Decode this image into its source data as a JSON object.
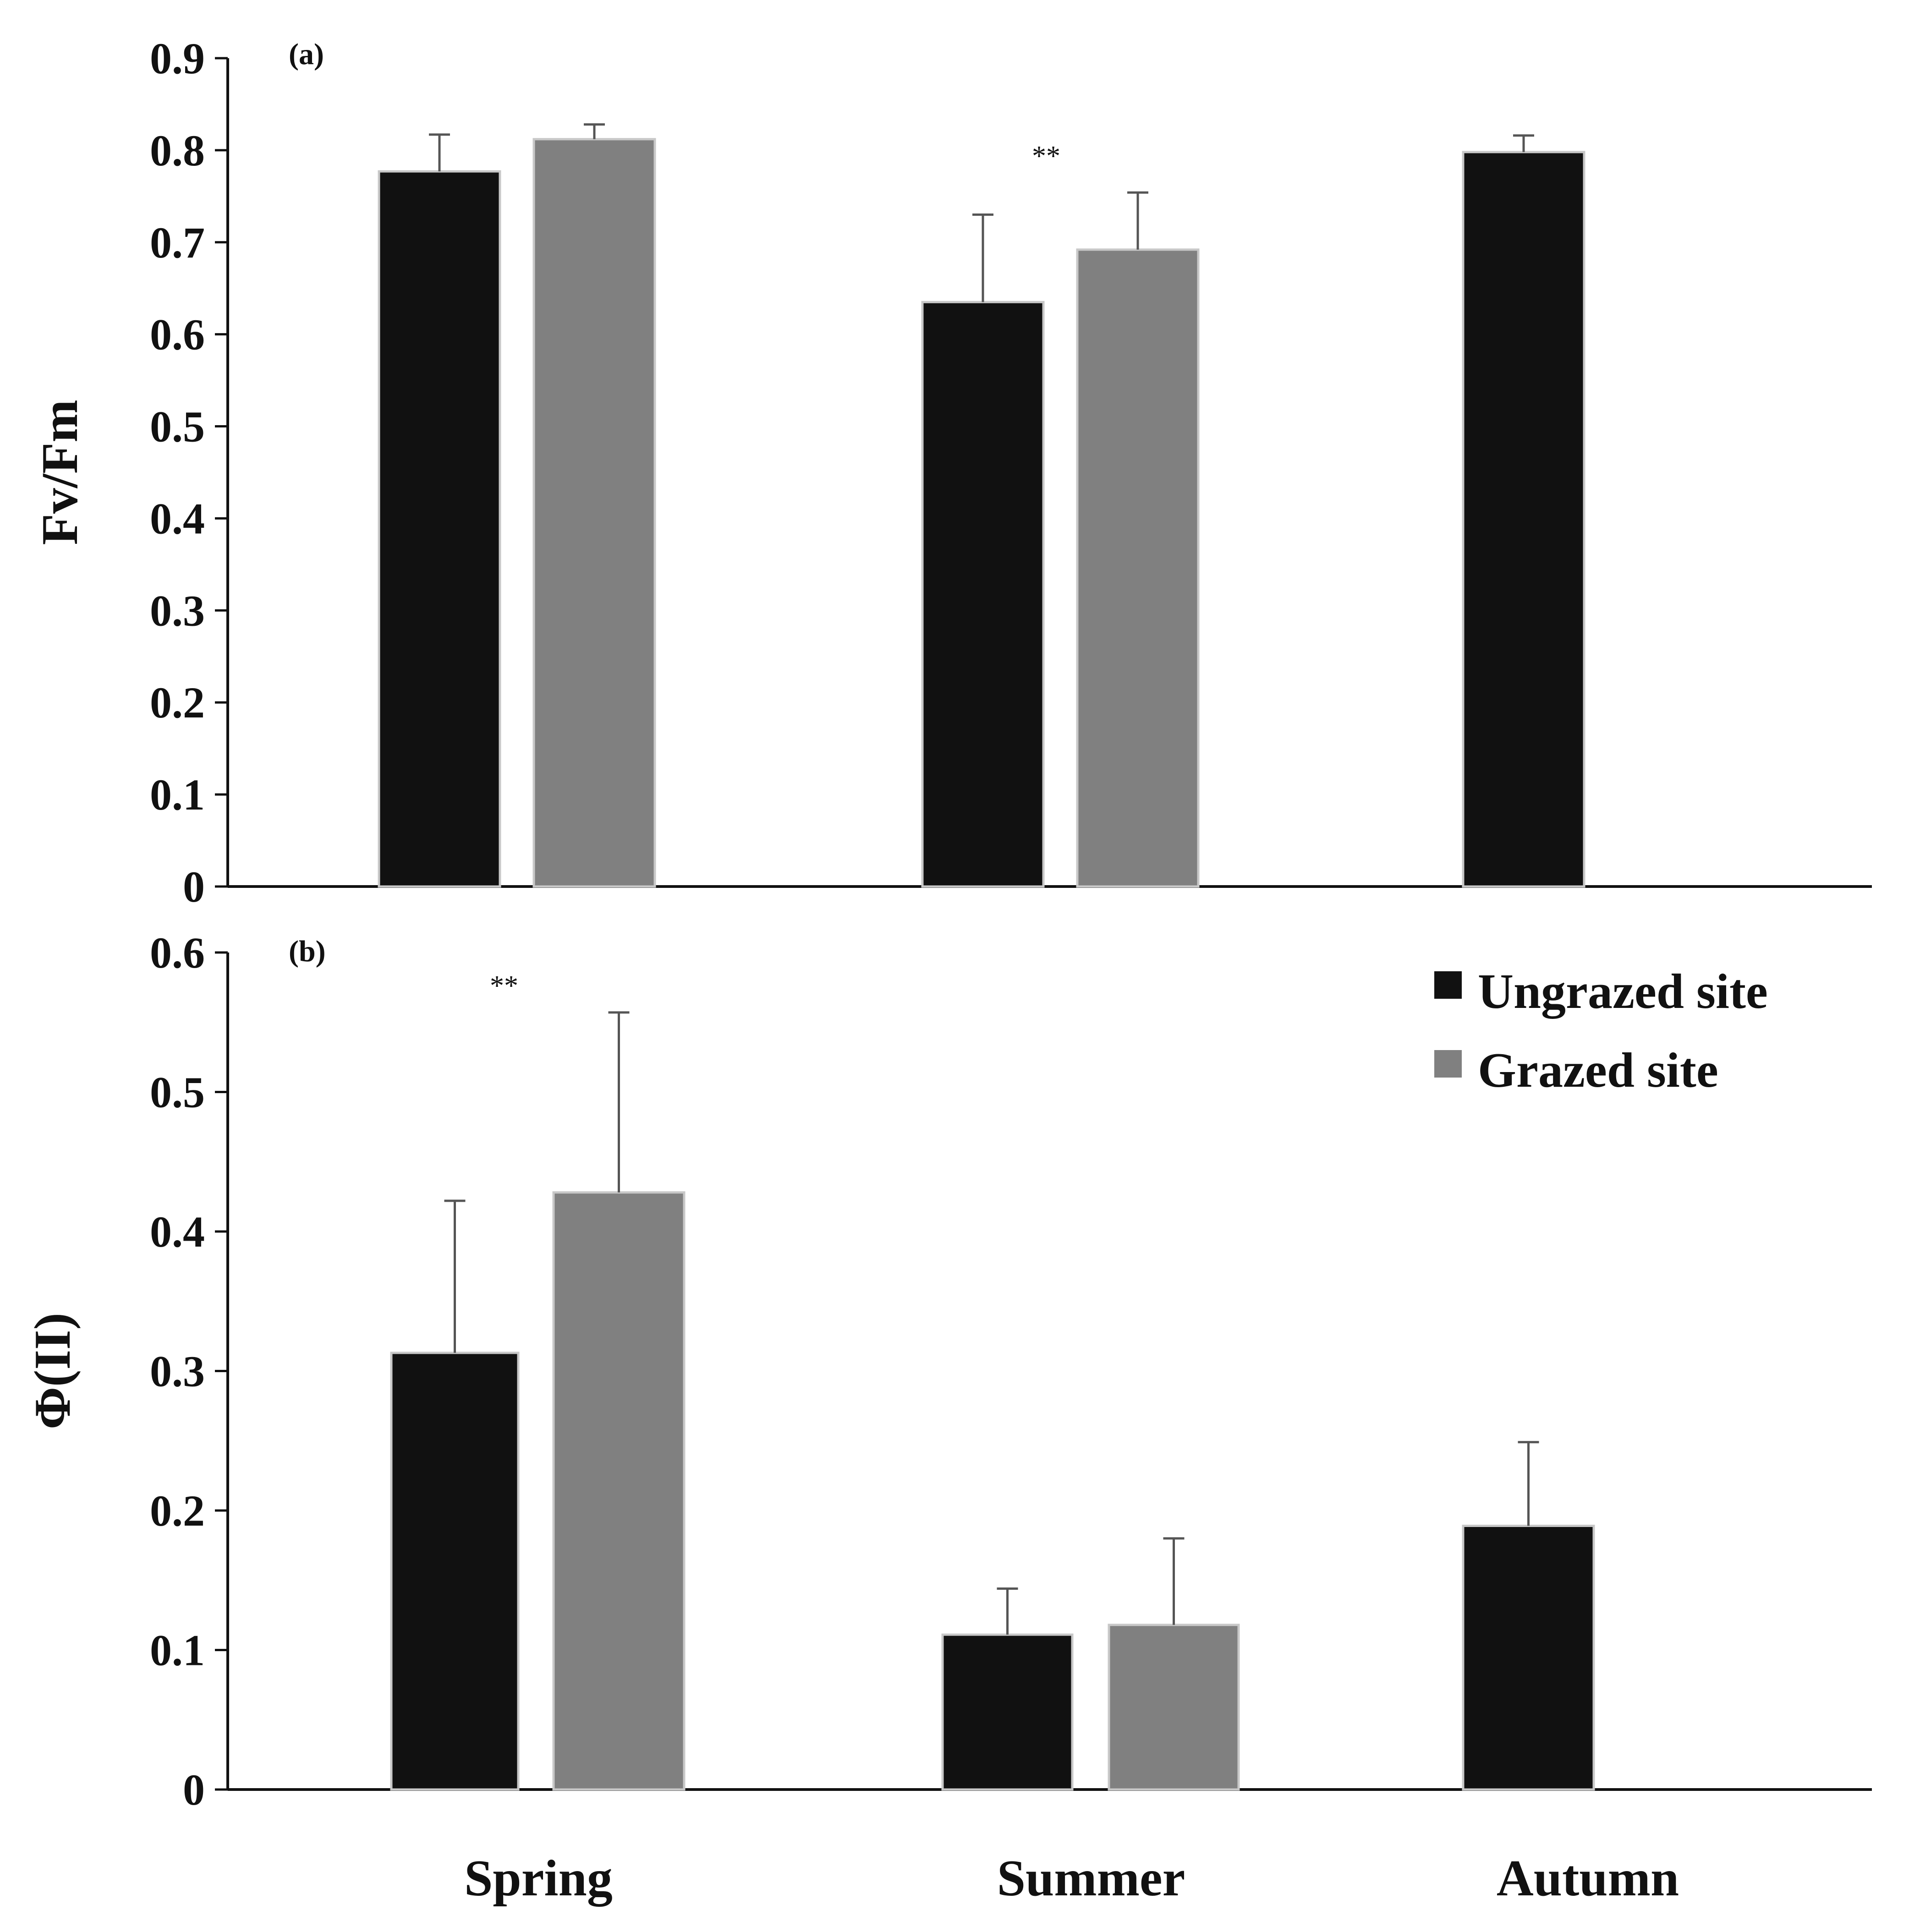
{
  "chart_data": {
    "type": "bar",
    "categories": [
      "Spring",
      "Summer",
      "Autumn"
    ],
    "legend": {
      "entries": [
        {
          "name": "Ungrazed site",
          "color": "#111111"
        },
        {
          "name": "Grazed site",
          "color": "#808080"
        }
      ],
      "placement": "top-right of panel (b)"
    },
    "panels": [
      {
        "id": "a",
        "panel_label": "(a)",
        "ylabel": "Fv/Fm",
        "ylim": [
          0,
          0.9
        ],
        "yticks": [
          0,
          0.1,
          0.2,
          0.3,
          0.4,
          0.5,
          0.6,
          0.7,
          0.8,
          0.9
        ],
        "ytick_labels": [
          "0",
          "0.1",
          "0.2",
          "0.3",
          "0.4",
          "0.5",
          "0.6",
          "0.7",
          "0.8",
          "0.9"
        ],
        "series": [
          {
            "name": "Ungrazed site",
            "values": [
              0.777,
              0.635,
              0.798
            ],
            "errors": [
              0.04,
              0.095,
              0.018
            ]
          },
          {
            "name": "Grazed site",
            "values": [
              0.812,
              0.692,
              null
            ],
            "errors": [
              0.016,
              0.062,
              null
            ]
          }
        ],
        "annotations": [
          {
            "text": "**",
            "category": "Summer"
          }
        ]
      },
      {
        "id": "b",
        "panel_label": "(b)",
        "ylabel": "Φ(II)",
        "ylim": [
          0,
          0.6
        ],
        "yticks": [
          0,
          0.1,
          0.2,
          0.3,
          0.4,
          0.5,
          0.6
        ],
        "ytick_labels": [
          "0",
          "0.1",
          "0.2",
          "0.3",
          "0.4",
          "0.5",
          "0.6"
        ],
        "series": [
          {
            "name": "Ungrazed site",
            "values": [
              0.313,
              0.111,
              0.189
            ],
            "errors": [
              0.109,
              0.033,
              0.06
            ]
          },
          {
            "name": "Grazed site",
            "values": [
              0.428,
              0.118,
              null
            ],
            "errors": [
              0.129,
              0.062,
              null
            ]
          }
        ],
        "annotations": [
          {
            "text": "**",
            "category": "Spring"
          }
        ]
      }
    ]
  }
}
